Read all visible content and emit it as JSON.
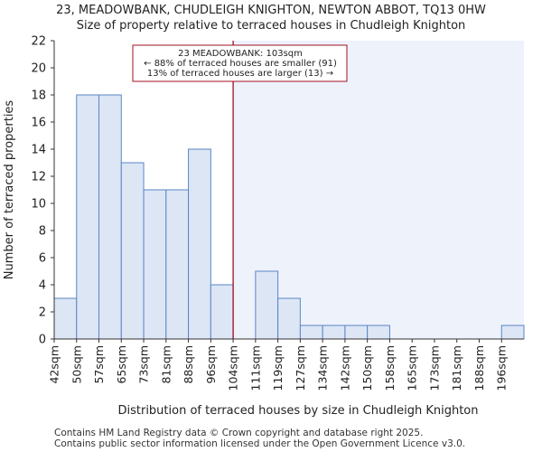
{
  "chart_data": {
    "type": "bar",
    "title": "23, MEADOWBANK, CHUDLEIGH KNIGHTON, NEWTON ABBOT, TQ13 0HW",
    "subtitle": "Size of property relative to terraced houses in Chudleigh Knighton",
    "xlabel": "Distribution of terraced houses by size in Chudleigh Knighton",
    "ylabel": "Number of terraced properties",
    "categories": [
      "42sqm",
      "50sqm",
      "57sqm",
      "65sqm",
      "73sqm",
      "81sqm",
      "88sqm",
      "96sqm",
      "104sqm",
      "111sqm",
      "119sqm",
      "127sqm",
      "134sqm",
      "142sqm",
      "150sqm",
      "158sqm",
      "165sqm",
      "173sqm",
      "181sqm",
      "188sqm",
      "196sqm"
    ],
    "values": [
      3,
      18,
      18,
      13,
      11,
      11,
      14,
      4,
      0,
      5,
      3,
      1,
      1,
      1,
      1,
      0,
      0,
      0,
      0,
      0,
      1
    ],
    "ylim": [
      0,
      22
    ],
    "yticks": [
      0,
      2,
      4,
      6,
      8,
      10,
      12,
      14,
      16,
      18,
      20,
      22
    ],
    "marker_value": 103,
    "marker_category_index": 8,
    "annotation": {
      "line1": "23 MEADOWBANK: 103sqm",
      "line2": "← 88% of terraced houses are smaller (91)",
      "line3": "13% of terraced houses are larger (13) →"
    },
    "colors": {
      "bar_fill": "#dce6f5",
      "bar_stroke": "#5a86c6",
      "marker": "#a01020",
      "highlight_region": "#eef2fb",
      "annotation_border": "#a01020"
    }
  },
  "footer": {
    "line1": "Contains HM Land Registry data © Crown copyright and database right 2025.",
    "line2": "Contains public sector information licensed under the Open Government Licence v3.0."
  }
}
